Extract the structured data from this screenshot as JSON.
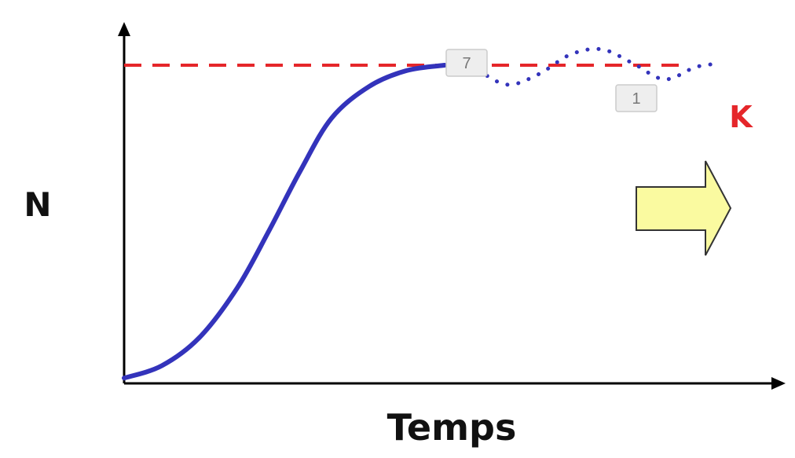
{
  "chart_data": {
    "type": "line",
    "xlabel": "Temps",
    "ylabel": "N",
    "grid": false,
    "xlim": [
      0,
      10
    ],
    "ylim": [
      0,
      10
    ],
    "reference_lines": [
      {
        "label": "K",
        "y": 9,
        "style": "dashed",
        "color": "#e5262a"
      }
    ],
    "series": [
      {
        "style": "solid",
        "color": "#3333bb",
        "points": [
          [
            0.0,
            0.15
          ],
          [
            0.6,
            0.5
          ],
          [
            1.2,
            1.3
          ],
          [
            1.8,
            2.7
          ],
          [
            2.3,
            4.3
          ],
          [
            2.8,
            6.0
          ],
          [
            3.3,
            7.5
          ],
          [
            3.9,
            8.4
          ],
          [
            4.5,
            8.85
          ],
          [
            5.1,
            9.0
          ]
        ]
      },
      {
        "style": "dotted",
        "color": "#3333bb",
        "points": [
          [
            5.1,
            9.0
          ],
          [
            5.6,
            8.85
          ],
          [
            6.1,
            8.45
          ],
          [
            6.6,
            8.75
          ],
          [
            7.1,
            9.3
          ],
          [
            7.6,
            9.45
          ],
          [
            8.1,
            9.05
          ],
          [
            8.6,
            8.6
          ],
          [
            9.1,
            8.95
          ],
          [
            9.5,
            9.05
          ]
        ]
      }
    ],
    "annotations": [
      {
        "text": "7",
        "x": 5.1,
        "y": 9.0
      },
      {
        "text": "1",
        "x": 7.8,
        "y": 8.0
      }
    ],
    "colors": {
      "axis": "#000000",
      "arrow_fill": "#fafaa0",
      "arrow_stroke": "#333333",
      "badge_fill": "#eeeeee",
      "badge_stroke": "#cccccc",
      "k_label": "#e5262a"
    }
  }
}
